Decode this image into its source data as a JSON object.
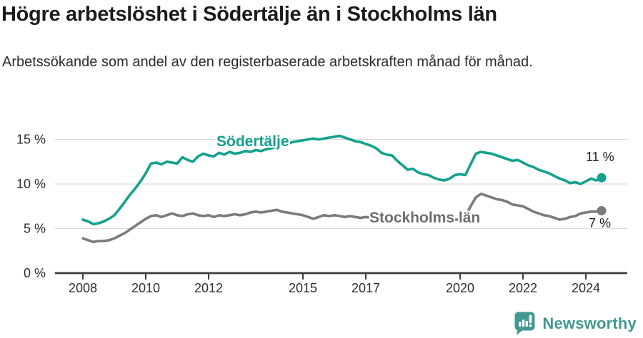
{
  "header": {
    "title": "Högre arbetslöshet i Södertälje än i Stockholms län",
    "subtitle": "Arbetssökande som andel av den registerbaserade arbetskraften månad för månad."
  },
  "footer": {
    "brand": "Newsworthy",
    "brand_color": "#43998f"
  },
  "chart_data": {
    "type": "line",
    "title": "Högre arbetslöshet i Södertälje än i Stockholms län",
    "subtitle": "Arbetssökande som andel av den registerbaserade arbetskraften månad för månad.",
    "xlabel": "",
    "ylabel": "",
    "grid": true,
    "legend_position": "inline-labels",
    "x_axis": {
      "start_year": 2008,
      "step_years": 0.166667,
      "tick_years": [
        2008,
        2010,
        2012,
        2015,
        2017,
        2020,
        2022,
        2024
      ]
    },
    "y_axis": {
      "range": [
        0,
        16.6
      ],
      "ticks": [
        {
          "value": 0,
          "label": "0 %"
        },
        {
          "value": 5,
          "label": "5 %"
        },
        {
          "value": 10,
          "label": "10 %"
        },
        {
          "value": 15,
          "label": "15 %"
        }
      ]
    },
    "series": [
      {
        "name": "Södertälje",
        "color": "#14a18d",
        "label_color": "#12a08c",
        "end_label": "11 %",
        "end_value": 10.7,
        "values": [
          6.0,
          5.8,
          5.5,
          5.6,
          5.8,
          6.1,
          6.5,
          7.2,
          8.0,
          8.8,
          9.5,
          10.3,
          11.2,
          12.3,
          12.4,
          12.2,
          12.5,
          12.4,
          12.3,
          13.0,
          12.7,
          12.5,
          13.1,
          13.4,
          13.2,
          13.1,
          13.5,
          13.3,
          13.6,
          13.4,
          13.5,
          13.7,
          13.6,
          13.8,
          13.7,
          13.9,
          14.0,
          14.2,
          14.4,
          14.5,
          14.7,
          14.8,
          14.9,
          15.0,
          15.1,
          15.0,
          15.1,
          15.2,
          15.3,
          15.4,
          15.2,
          15.0,
          14.8,
          14.7,
          14.5,
          14.3,
          14.0,
          13.5,
          13.3,
          13.2,
          12.6,
          12.1,
          11.6,
          11.7,
          11.3,
          11.1,
          11.0,
          10.7,
          10.5,
          10.4,
          10.6,
          11.0,
          11.1,
          11.0,
          12.2,
          13.4,
          13.6,
          13.5,
          13.4,
          13.2,
          13.0,
          12.8,
          12.6,
          12.7,
          12.4,
          12.1,
          11.9,
          11.6,
          11.4,
          11.2,
          10.9,
          10.6,
          10.4,
          10.1,
          10.2,
          10.0,
          10.3,
          10.6,
          10.4,
          10.7
        ]
      },
      {
        "name": "Stockholms län",
        "color": "#7b7b7b",
        "label_color": "#6e6e6e",
        "end_label": "7 %",
        "end_value": 7.0,
        "values": [
          3.9,
          3.7,
          3.5,
          3.6,
          3.6,
          3.7,
          3.9,
          4.2,
          4.5,
          4.9,
          5.3,
          5.7,
          6.1,
          6.4,
          6.5,
          6.3,
          6.5,
          6.7,
          6.5,
          6.4,
          6.6,
          6.7,
          6.5,
          6.4,
          6.5,
          6.3,
          6.5,
          6.4,
          6.5,
          6.6,
          6.5,
          6.6,
          6.8,
          6.9,
          6.8,
          6.9,
          7.0,
          7.1,
          6.9,
          6.8,
          6.7,
          6.6,
          6.5,
          6.3,
          6.1,
          6.3,
          6.5,
          6.4,
          6.5,
          6.4,
          6.3,
          6.4,
          6.3,
          6.2,
          6.3,
          6.2,
          6.1,
          6.2,
          6.1,
          6.0,
          6.1,
          6.0,
          5.9,
          6.0,
          5.9,
          5.9,
          6.0,
          5.9,
          5.9,
          5.9,
          6.0,
          6.0,
          6.0,
          6.3,
          7.5,
          8.5,
          8.9,
          8.7,
          8.5,
          8.3,
          8.2,
          8.0,
          7.7,
          7.6,
          7.5,
          7.2,
          6.9,
          6.7,
          6.5,
          6.4,
          6.2,
          6.0,
          6.1,
          6.3,
          6.4,
          6.7,
          6.8,
          6.9,
          6.9,
          7.0
        ]
      }
    ]
  }
}
